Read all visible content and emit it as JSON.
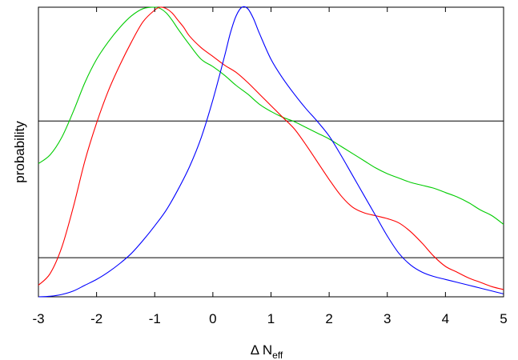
{
  "chart_data": {
    "type": "line",
    "xlabel": "Δ N",
    "xlabel_subscript": "eff",
    "ylabel": "probability",
    "xlim": [
      -3,
      5
    ],
    "ylim": [
      0,
      1
    ],
    "x_ticks": [
      -3,
      -2,
      -1,
      0,
      1,
      2,
      3,
      4,
      5
    ],
    "x_tick_labels": [
      "-3",
      "-2",
      "-1",
      "0",
      "1",
      "2",
      "3",
      "4",
      "5"
    ],
    "y_ticks_labeled": false,
    "grid": false,
    "legend": "none",
    "reference_lines": [
      {
        "y": 0.607,
        "color": "#000000"
      },
      {
        "y": 0.135,
        "color": "#000000"
      }
    ],
    "series": [
      {
        "color": "#00cc00",
        "x": [
          -3,
          -2.8,
          -2.6,
          -2.4,
          -2.2,
          -2.0,
          -1.8,
          -1.6,
          -1.4,
          -1.2,
          -1.0,
          -0.9,
          -0.8,
          -0.7,
          -0.6,
          -0.4,
          -0.2,
          0.0,
          0.2,
          0.4,
          0.6,
          0.8,
          1.0,
          1.2,
          1.4,
          1.6,
          1.8,
          2.0,
          2.2,
          2.4,
          2.6,
          2.8,
          3.0,
          3.2,
          3.4,
          3.6,
          3.8,
          4.0,
          4.2,
          4.4,
          4.6,
          4.8,
          5.0
        ],
        "y": [
          0.46,
          0.49,
          0.55,
          0.64,
          0.74,
          0.82,
          0.88,
          0.93,
          0.97,
          0.995,
          1.0,
          0.995,
          0.98,
          0.955,
          0.925,
          0.87,
          0.82,
          0.795,
          0.765,
          0.73,
          0.7,
          0.665,
          0.64,
          0.62,
          0.605,
          0.585,
          0.565,
          0.545,
          0.52,
          0.495,
          0.47,
          0.445,
          0.425,
          0.41,
          0.395,
          0.385,
          0.375,
          0.36,
          0.345,
          0.325,
          0.3,
          0.28,
          0.25
        ]
      },
      {
        "color": "#ff0000",
        "x": [
          -3,
          -2.8,
          -2.6,
          -2.4,
          -2.2,
          -2.0,
          -1.8,
          -1.6,
          -1.4,
          -1.2,
          -1.0,
          -0.9,
          -0.8,
          -0.7,
          -0.6,
          -0.5,
          -0.4,
          -0.2,
          0.0,
          0.2,
          0.4,
          0.6,
          0.8,
          1.0,
          1.2,
          1.4,
          1.6,
          1.8,
          2.0,
          2.2,
          2.4,
          2.6,
          2.8,
          3.0,
          3.2,
          3.4,
          3.6,
          3.8,
          4.0,
          4.2,
          4.4,
          4.6,
          4.8,
          5.0
        ],
        "y": [
          0.04,
          0.08,
          0.17,
          0.31,
          0.47,
          0.6,
          0.71,
          0.8,
          0.88,
          0.95,
          0.99,
          1.0,
          0.995,
          0.98,
          0.955,
          0.93,
          0.9,
          0.86,
          0.83,
          0.8,
          0.775,
          0.74,
          0.7,
          0.66,
          0.62,
          0.58,
          0.525,
          0.465,
          0.405,
          0.35,
          0.31,
          0.29,
          0.28,
          0.27,
          0.255,
          0.225,
          0.185,
          0.14,
          0.105,
          0.085,
          0.065,
          0.05,
          0.035,
          0.025
        ]
      },
      {
        "color": "#0000ff",
        "x": [
          -3,
          -2.8,
          -2.6,
          -2.4,
          -2.2,
          -2.0,
          -1.8,
          -1.6,
          -1.4,
          -1.2,
          -1.0,
          -0.8,
          -0.6,
          -0.4,
          -0.2,
          0.0,
          0.2,
          0.3,
          0.4,
          0.5,
          0.6,
          0.7,
          0.8,
          1.0,
          1.2,
          1.4,
          1.6,
          1.8,
          2.0,
          2.2,
          2.4,
          2.6,
          2.8,
          3.0,
          3.2,
          3.4,
          3.6,
          3.8,
          4.0,
          4.2,
          4.4,
          4.6,
          4.8,
          5.0
        ],
        "y": [
          0.0,
          0.002,
          0.008,
          0.02,
          0.04,
          0.06,
          0.085,
          0.115,
          0.15,
          0.195,
          0.245,
          0.3,
          0.37,
          0.45,
          0.55,
          0.68,
          0.83,
          0.91,
          0.97,
          1.0,
          0.995,
          0.96,
          0.91,
          0.82,
          0.755,
          0.7,
          0.65,
          0.605,
          0.555,
          0.49,
          0.42,
          0.35,
          0.28,
          0.21,
          0.15,
          0.11,
          0.085,
          0.07,
          0.06,
          0.05,
          0.04,
          0.03,
          0.02,
          0.01
        ]
      }
    ]
  }
}
